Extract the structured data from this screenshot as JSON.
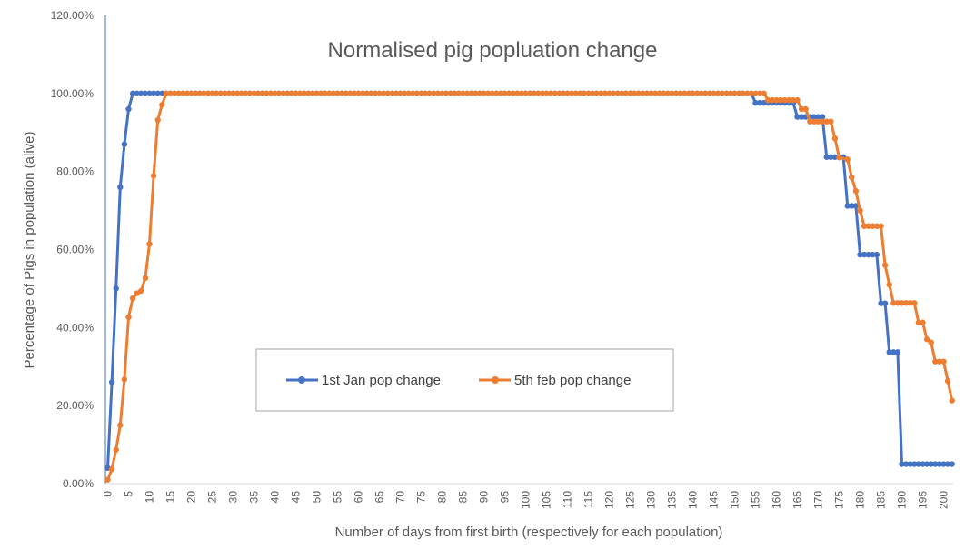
{
  "chart_data": {
    "type": "line",
    "title": "Normalised pig popluation change",
    "xlabel": "Number of days from first birth (respectively for each population)",
    "ylabel": "Percentage of Pigs in population (alive)",
    "xlim": [
      0,
      202
    ],
    "ylim": [
      0,
      1.2
    ],
    "y_ticks": [
      "0.00%",
      "20.00%",
      "40.00%",
      "60.00%",
      "80.00%",
      "100.00%",
      "120.00%"
    ],
    "x_tick_step": 5,
    "grid": false,
    "legend_position": "bottom-left",
    "series": [
      {
        "name": "1st Jan pop change",
        "color": "#4472C4",
        "points": [
          [
            0,
            0.04
          ],
          [
            1,
            0.26
          ],
          [
            2,
            0.5
          ],
          [
            3,
            0.76
          ],
          [
            4,
            0.87
          ],
          [
            5,
            0.96
          ],
          [
            6,
            1.0
          ],
          [
            154,
            1.0
          ],
          [
            155,
            0.976
          ],
          [
            164,
            0.976
          ],
          [
            165,
            0.94
          ],
          [
            171,
            0.94
          ],
          [
            172,
            0.837
          ],
          [
            176,
            0.837
          ],
          [
            177,
            0.712
          ],
          [
            179,
            0.712
          ],
          [
            180,
            0.587
          ],
          [
            184,
            0.587
          ],
          [
            185,
            0.462
          ],
          [
            186,
            0.462
          ],
          [
            187,
            0.337
          ],
          [
            189,
            0.337
          ],
          [
            190,
            0.05
          ],
          [
            202,
            0.05
          ]
        ]
      },
      {
        "name": "5th feb pop change",
        "color": "#ED7D31",
        "points": [
          [
            0,
            0.01
          ],
          [
            1,
            0.037
          ],
          [
            2,
            0.087
          ],
          [
            3,
            0.15
          ],
          [
            4,
            0.267
          ],
          [
            5,
            0.427
          ],
          [
            6,
            0.475
          ],
          [
            7,
            0.488
          ],
          [
            8,
            0.494
          ],
          [
            9,
            0.527
          ],
          [
            10,
            0.614
          ],
          [
            11,
            0.789
          ],
          [
            12,
            0.932
          ],
          [
            13,
            0.971
          ],
          [
            14,
            1.0
          ],
          [
            157,
            1.0
          ],
          [
            158,
            0.983
          ],
          [
            165,
            0.983
          ],
          [
            166,
            0.96
          ],
          [
            167,
            0.96
          ],
          [
            168,
            0.928
          ],
          [
            173,
            0.928
          ],
          [
            174,
            0.885
          ],
          [
            175,
            0.836
          ],
          [
            177,
            0.831
          ],
          [
            178,
            0.785
          ],
          [
            179,
            0.75
          ],
          [
            180,
            0.7
          ],
          [
            181,
            0.66
          ],
          [
            185,
            0.66
          ],
          [
            186,
            0.56
          ],
          [
            187,
            0.51
          ],
          [
            188,
            0.463
          ],
          [
            193,
            0.463
          ],
          [
            194,
            0.413
          ],
          [
            195,
            0.413
          ],
          [
            196,
            0.37
          ],
          [
            197,
            0.362
          ],
          [
            198,
            0.313
          ],
          [
            200,
            0.313
          ],
          [
            201,
            0.263
          ],
          [
            202,
            0.213
          ]
        ]
      }
    ]
  }
}
